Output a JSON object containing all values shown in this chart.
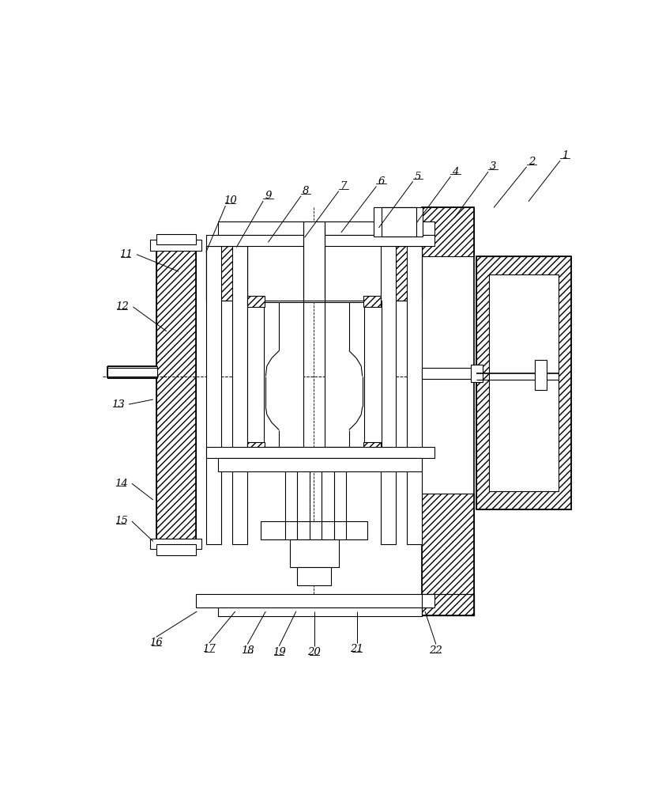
{
  "bg_color": "#ffffff",
  "lc": "#000000",
  "lw": 0.8,
  "lw2": 1.2,
  "top_labels": [
    [
      "1",
      790,
      100,
      730,
      175
    ],
    [
      "2",
      735,
      110,
      673,
      185
    ],
    [
      "3",
      672,
      118,
      608,
      202
    ],
    [
      "4",
      610,
      126,
      546,
      210
    ],
    [
      "5",
      548,
      134,
      484,
      218
    ],
    [
      "6",
      488,
      142,
      422,
      226
    ],
    [
      "7",
      426,
      150,
      362,
      234
    ],
    [
      "8",
      364,
      158,
      302,
      242
    ],
    [
      "9",
      302,
      166,
      250,
      250
    ],
    [
      "10",
      240,
      174,
      200,
      258
    ]
  ],
  "left_labels": [
    [
      "11",
      68,
      262,
      155,
      290
    ],
    [
      "12",
      62,
      348,
      135,
      388
    ],
    [
      "13",
      55,
      508,
      113,
      500
    ],
    [
      "14",
      60,
      638,
      113,
      665
    ],
    [
      "15",
      60,
      700,
      113,
      733
    ]
  ],
  "bottom_labels": [
    [
      "16",
      118,
      900,
      185,
      848
    ],
    [
      "17",
      205,
      910,
      248,
      848
    ],
    [
      "18",
      268,
      912,
      298,
      848
    ],
    [
      "19",
      320,
      915,
      348,
      848
    ],
    [
      "20",
      378,
      915,
      378,
      848
    ],
    [
      "21",
      448,
      910,
      448,
      848
    ],
    [
      "22",
      578,
      912,
      560,
      848
    ]
  ]
}
